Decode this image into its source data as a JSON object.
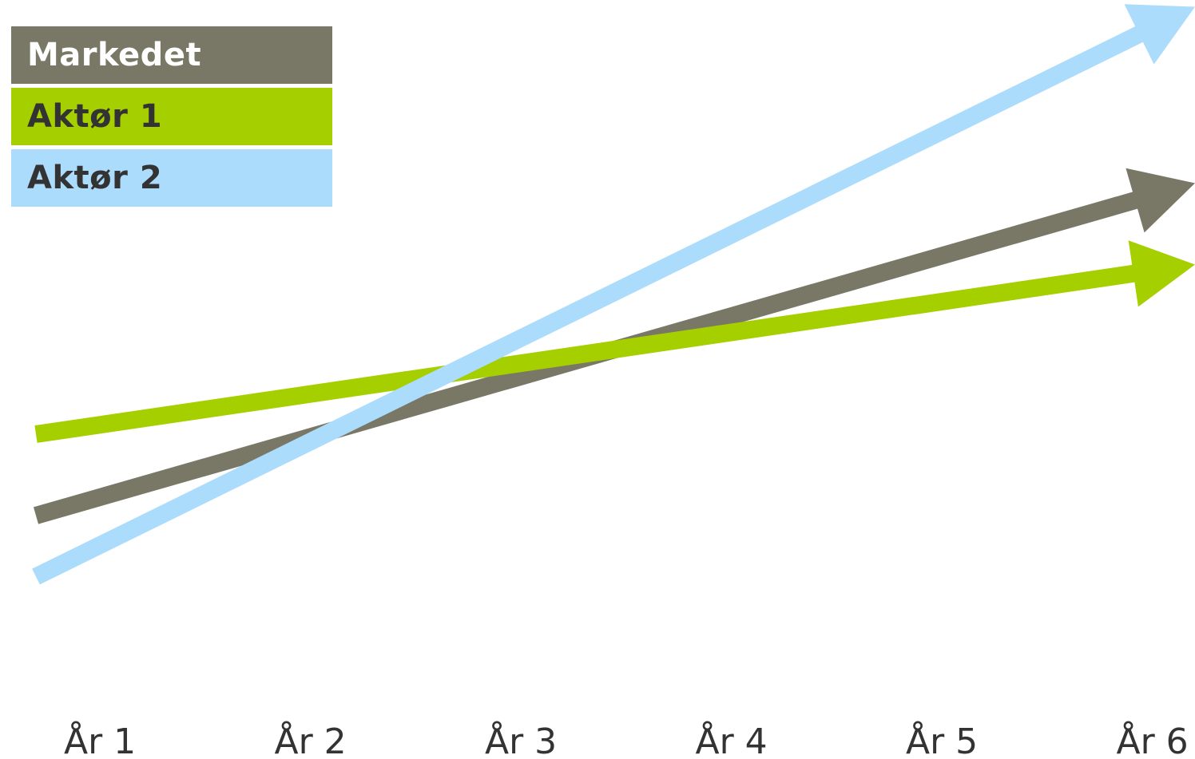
{
  "chart_data": {
    "type": "line",
    "title": "",
    "xlabel": "",
    "ylabel": "",
    "x": [
      "År 1",
      "År 2",
      "År 3",
      "År 4",
      "År 5",
      "År 6"
    ],
    "series": [
      {
        "name": "Markedet",
        "color": "#797866",
        "text_color": "#ffffff",
        "start": 2.4,
        "end": 7.3
      },
      {
        "name": "Aktør 1",
        "color": "#a6cf00",
        "text_color": "#333333",
        "start": 3.6,
        "end": 6.1
      },
      {
        "name": "Aktør 2",
        "color": "#acdcfc",
        "text_color": "#333333",
        "start": 1.5,
        "end": 9.9
      }
    ],
    "ylim": [
      0,
      10
    ],
    "grid": false,
    "legend": "top-left",
    "y_axis_visible": false
  }
}
